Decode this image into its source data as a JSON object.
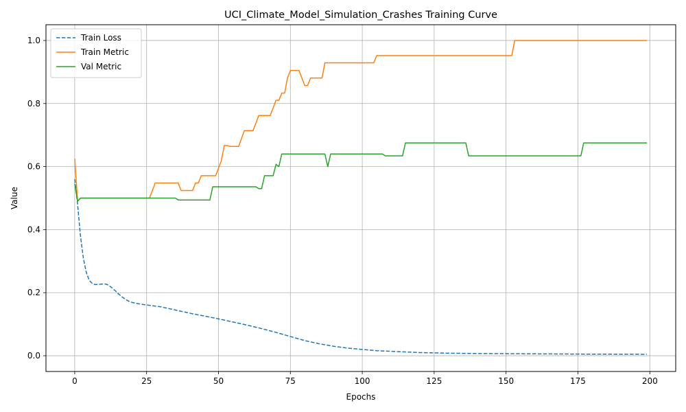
{
  "chart_data": {
    "type": "line",
    "title": "UCI_Climate_Model_Simulation_Crashes Training Curve",
    "xlabel": "Epochs",
    "ylabel": "Value",
    "xlim": [
      -10,
      209
    ],
    "ylim": [
      -0.05,
      1.05
    ],
    "xticks": [
      0,
      25,
      50,
      75,
      100,
      125,
      150,
      175,
      200
    ],
    "yticks": [
      0.0,
      0.2,
      0.4,
      0.6,
      0.8,
      1.0
    ],
    "xtick_labels": [
      "0",
      "25",
      "50",
      "75",
      "100",
      "125",
      "150",
      "175",
      "200"
    ],
    "ytick_labels": [
      "0.0",
      "0.2",
      "0.4",
      "0.6",
      "0.8",
      "1.0"
    ],
    "grid": true,
    "legend_position": "top-left",
    "series": [
      {
        "name": "Train Loss",
        "color": "#1f77b4",
        "dashed": true,
        "points": [
          [
            0,
            0.56
          ],
          [
            1,
            0.48
          ],
          [
            2,
            0.38
          ],
          [
            3,
            0.31
          ],
          [
            4,
            0.265
          ],
          [
            5,
            0.24
          ],
          [
            6,
            0.23
          ],
          [
            7,
            0.226
          ],
          [
            8,
            0.226
          ],
          [
            9,
            0.227
          ],
          [
            10,
            0.228
          ],
          [
            11,
            0.227
          ],
          [
            12,
            0.222
          ],
          [
            13,
            0.215
          ],
          [
            14,
            0.207
          ],
          [
            15,
            0.198
          ],
          [
            16,
            0.19
          ],
          [
            17,
            0.183
          ],
          [
            18,
            0.177
          ],
          [
            19,
            0.172
          ],
          [
            20,
            0.169
          ],
          [
            22,
            0.165
          ],
          [
            25,
            0.161
          ],
          [
            30,
            0.155
          ],
          [
            35,
            0.145
          ],
          [
            40,
            0.135
          ],
          [
            45,
            0.126
          ],
          [
            50,
            0.117
          ],
          [
            55,
            0.107
          ],
          [
            60,
            0.097
          ],
          [
            65,
            0.086
          ],
          [
            70,
            0.074
          ],
          [
            75,
            0.061
          ],
          [
            80,
            0.048
          ],
          [
            85,
            0.038
          ],
          [
            90,
            0.03
          ],
          [
            95,
            0.024
          ],
          [
            100,
            0.02
          ],
          [
            105,
            0.016
          ],
          [
            110,
            0.014
          ],
          [
            115,
            0.012
          ],
          [
            120,
            0.01
          ],
          [
            130,
            0.008
          ],
          [
            140,
            0.007
          ],
          [
            150,
            0.0065
          ],
          [
            160,
            0.006
          ],
          [
            170,
            0.0055
          ],
          [
            180,
            0.005
          ],
          [
            190,
            0.0048
          ],
          [
            199,
            0.0045
          ]
        ]
      },
      {
        "name": "Train Metric",
        "color": "#ff7f0e",
        "dashed": false,
        "points": [
          [
            0,
            0.625
          ],
          [
            1,
            0.49
          ],
          [
            2,
            0.5
          ],
          [
            26,
            0.5
          ],
          [
            28,
            0.548
          ],
          [
            36,
            0.548
          ],
          [
            37,
            0.524
          ],
          [
            41,
            0.524
          ],
          [
            42,
            0.548
          ],
          [
            43,
            0.548
          ],
          [
            44,
            0.571
          ],
          [
            48,
            0.571
          ],
          [
            49,
            0.571
          ],
          [
            50,
            0.595
          ],
          [
            51,
            0.619
          ],
          [
            52,
            0.667
          ],
          [
            53,
            0.667
          ],
          [
            54,
            0.664
          ],
          [
            57,
            0.664
          ],
          [
            59,
            0.714
          ],
          [
            62,
            0.714
          ],
          [
            64,
            0.762
          ],
          [
            68,
            0.762
          ],
          [
            70,
            0.81
          ],
          [
            71,
            0.81
          ],
          [
            72,
            0.833
          ],
          [
            73,
            0.833
          ],
          [
            74,
            0.881
          ],
          [
            75,
            0.905
          ],
          [
            78,
            0.905
          ],
          [
            80,
            0.857
          ],
          [
            81,
            0.857
          ],
          [
            82,
            0.881
          ],
          [
            86,
            0.881
          ],
          [
            87,
            0.929
          ],
          [
            104,
            0.929
          ],
          [
            105,
            0.952
          ],
          [
            152,
            0.952
          ],
          [
            153,
            1.0
          ],
          [
            199,
            1.0
          ]
        ]
      },
      {
        "name": "Val Metric",
        "color": "#2ca02c",
        "dashed": false,
        "points": [
          [
            0,
            0.545
          ],
          [
            1,
            0.49
          ],
          [
            2,
            0.5
          ],
          [
            35,
            0.5
          ],
          [
            36,
            0.494
          ],
          [
            47,
            0.494
          ],
          [
            48,
            0.536
          ],
          [
            63,
            0.536
          ],
          [
            64,
            0.53
          ],
          [
            65,
            0.53
          ],
          [
            66,
            0.571
          ],
          [
            69,
            0.571
          ],
          [
            70,
            0.607
          ],
          [
            71,
            0.6
          ],
          [
            72,
            0.64
          ],
          [
            87,
            0.64
          ],
          [
            88,
            0.6
          ],
          [
            89,
            0.64
          ],
          [
            107,
            0.64
          ],
          [
            108,
            0.634
          ],
          [
            114,
            0.634
          ],
          [
            115,
            0.675
          ],
          [
            136,
            0.675
          ],
          [
            137,
            0.634
          ],
          [
            176,
            0.634
          ],
          [
            177,
            0.675
          ],
          [
            199,
            0.675
          ]
        ]
      }
    ]
  }
}
